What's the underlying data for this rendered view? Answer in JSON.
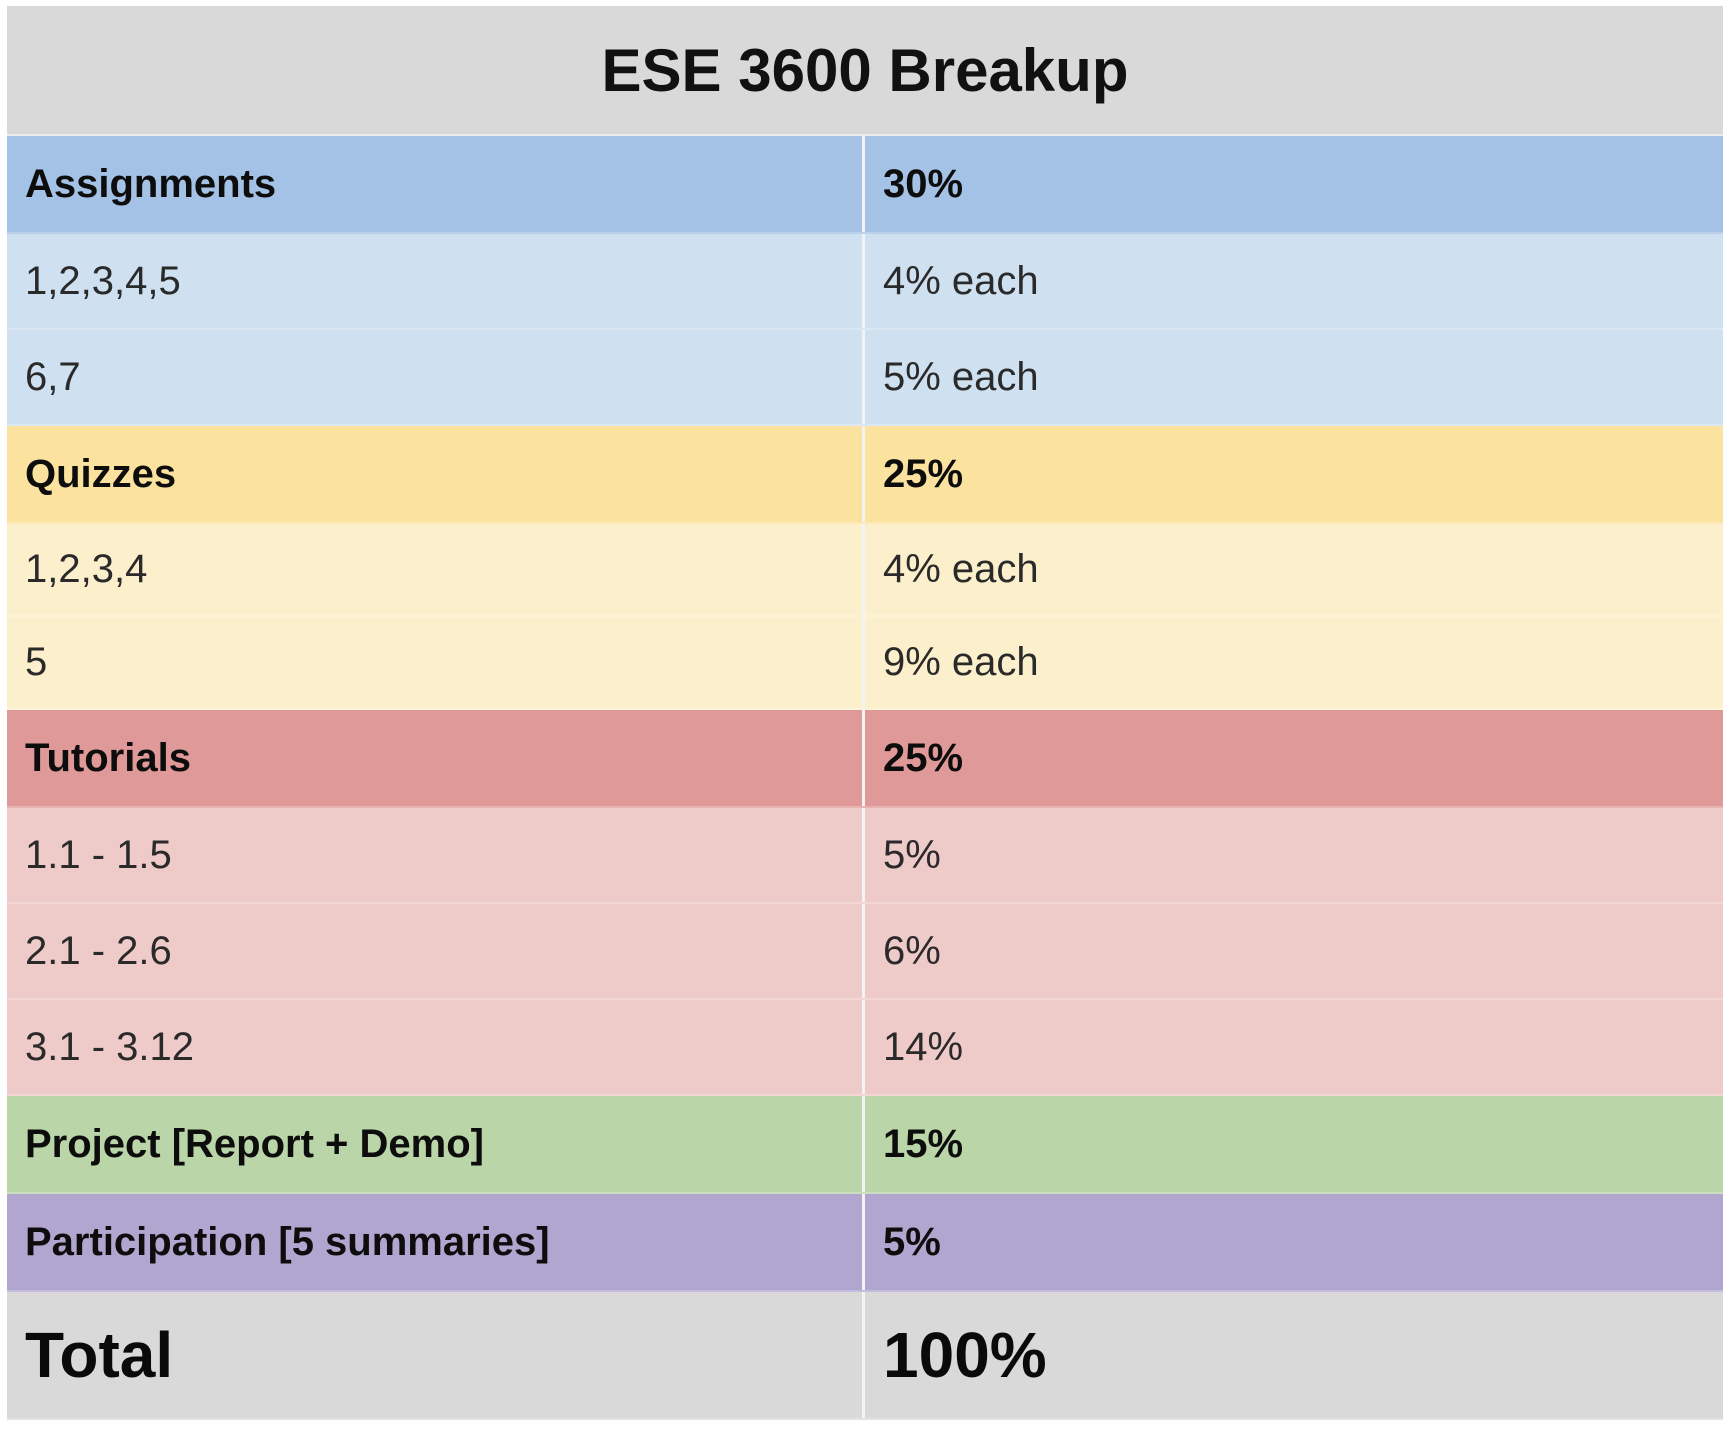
{
  "title": "ESE 3600 Breakup",
  "sections": {
    "assignments": {
      "label": "Assignments",
      "value": "30%",
      "header_color": "#a4c2e5",
      "row_color": "#cfe0f1",
      "items": [
        {
          "label": "1,2,3,4,5",
          "value": "4% each"
        },
        {
          "label": "6,7",
          "value": "5% each"
        }
      ]
    },
    "quizzes": {
      "label": "Quizzes",
      "value": "25%",
      "header_color": "#fbe29e",
      "row_color": "#fcefcc",
      "items": [
        {
          "label": "1,2,3,4",
          "value": "4% each"
        },
        {
          "label": "5",
          "value": "9% each"
        }
      ]
    },
    "tutorials": {
      "label": "Tutorials",
      "value": "25%",
      "header_color": "#df9998",
      "row_color": "#eecac9",
      "items": [
        {
          "label": "1.1 - 1.5",
          "value": "5%"
        },
        {
          "label": "2.1 - 2.6",
          "value": "6%"
        },
        {
          "label": "3.1 - 3.12",
          "value": "14%"
        }
      ]
    },
    "project": {
      "label": "Project [Report + Demo]",
      "value": "15%",
      "header_color": "#bad5a8"
    },
    "participation": {
      "label": "Participation [5 summaries]",
      "value": "5%",
      "header_color": "#b1a6d0"
    }
  },
  "total": {
    "label": "Total",
    "value": "100%",
    "color": "#d9d9d9"
  }
}
